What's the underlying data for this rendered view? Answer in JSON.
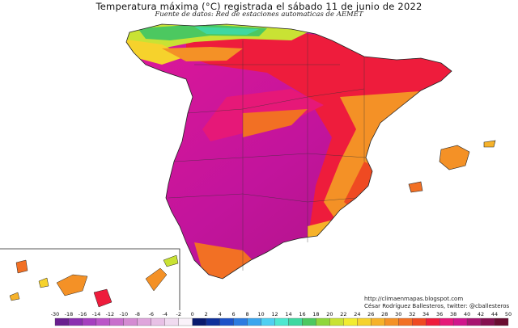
{
  "title": "Temperatura máxima (°C) registrada el sábado 11 de junio de 2022",
  "subtitle": "Fuente de datos: Red de estaciones automaticas de AEMET",
  "credit": {
    "url": "http://climaenmapas.blogspot.com",
    "author": "César Rodríguez Ballesteros, twitter: @cballesteros"
  },
  "legend": {
    "ticks": [
      "-30",
      "-18",
      "-16",
      "-14",
      "-12",
      "-10",
      "-8",
      "-6",
      "-4",
      "-2",
      "0",
      "2",
      "4",
      "6",
      "8",
      "10",
      "12",
      "14",
      "16",
      "18",
      "20",
      "22",
      "24",
      "26",
      "28",
      "30",
      "32",
      "34",
      "36",
      "38",
      "40",
      "42",
      "44",
      "50"
    ],
    "colors": [
      "#6a1f8f",
      "#8b2fb0",
      "#a63fbf",
      "#bb55c8",
      "#c86fcc",
      "#d48bd2",
      "#dfa5dc",
      "#e8c1e6",
      "#f0dbf0",
      "#faf2fa",
      "#0a1a6e",
      "#10309a",
      "#1e52c8",
      "#2d7be0",
      "#3ba6ee",
      "#4fd0f2",
      "#4ee8d0",
      "#3fd8a0",
      "#4cc860",
      "#8fd63c",
      "#c9e234",
      "#f2ec30",
      "#f6d22c",
      "#f6b22a",
      "#f49126",
      "#f27024",
      "#ef4a22",
      "#ee1c3c",
      "#e61878",
      "#d0168c",
      "#a81470",
      "#861050",
      "#6a0c30"
    ]
  },
  "regions": [
    {
      "name": "Iberian Peninsula (Spain)",
      "dominant_range": "36-42"
    },
    {
      "name": "Cantabrian coast",
      "dominant_range": "20-26"
    },
    {
      "name": "Balearic Islands",
      "dominant_range": "28-32"
    },
    {
      "name": "Canary Islands",
      "dominant_range": "22-34"
    }
  ]
}
